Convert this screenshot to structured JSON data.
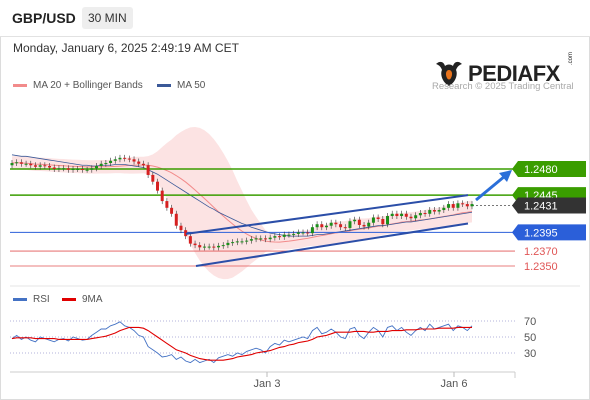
{
  "header": {
    "symbol": "GBP/USD",
    "timeframe": "30 MIN",
    "datetime": "Monday, January 6, 2025 2:49:19 AM CET"
  },
  "brand": {
    "logo_text": "PEDIAFX",
    "logo_com": ".com",
    "copyright": "Research © 2025 Trading Central"
  },
  "legend": {
    "ma_bb": {
      "label": "MA 20 + Bollinger Bands",
      "color": "#f28b8b"
    },
    "ma50": {
      "label": "MA 50",
      "color": "#3b5998"
    },
    "rsi": {
      "label": "RSI",
      "color": "#4472c4"
    },
    "rsi_ma": {
      "label": "9MA",
      "color": "#e00000"
    }
  },
  "chart_data": {
    "type": "candlestick",
    "y_range": [
      1.234,
      1.254
    ],
    "levels": [
      {
        "value": "1.2480",
        "price": 1.248,
        "color": "#3a9d00",
        "style": "solid"
      },
      {
        "value": "1.2445",
        "price": 1.2445,
        "color": "#3a9d00",
        "style": "solid"
      },
      {
        "value": "1.2431",
        "price": 1.2431,
        "color": "#333333",
        "style": "dotted"
      },
      {
        "value": "1.2395",
        "price": 1.2395,
        "color": "#2b5fd9",
        "style": "solid"
      },
      {
        "value": "1.2370",
        "price": 1.237,
        "color": "#e05555",
        "style": "thin"
      },
      {
        "value": "1.2350",
        "price": 1.235,
        "color": "#e05555",
        "style": "thin"
      }
    ],
    "x_ticks": [
      "Jan 3",
      "Jan 6"
    ],
    "channel": {
      "upper": [
        [
          0.0,
          1.2393
        ],
        [
          1.0,
          1.2445
        ]
      ],
      "lower": [
        [
          0.0,
          1.235
        ],
        [
          1.0,
          1.2407
        ]
      ]
    },
    "closes": [
      1.2488,
      1.2489,
      1.2487,
      1.2487,
      1.2485,
      1.2483,
      1.2485,
      1.2484,
      1.2482,
      1.248,
      1.2481,
      1.2481,
      1.2479,
      1.248,
      1.248,
      1.2479,
      1.2479,
      1.2481,
      1.2484,
      1.2487,
      1.2488,
      1.2491,
      1.2493,
      1.2495,
      1.2494,
      1.2493,
      1.249,
      1.2487,
      1.2485,
      1.2472,
      1.2463,
      1.2451,
      1.2437,
      1.2428,
      1.242,
      1.2404,
      1.2398,
      1.239,
      1.238,
      1.2378,
      1.2375,
      1.2376,
      1.2376,
      1.2375,
      1.2377,
      1.2378,
      1.2381,
      1.2382,
      1.2383,
      1.2383,
      1.2384,
      1.2386,
      1.2387,
      1.2387,
      1.2386,
      1.2388,
      1.239,
      1.2389,
      1.2392,
      1.2392,
      1.2393,
      1.2395,
      1.2395,
      1.2394,
      1.2402,
      1.2406,
      1.2402,
      1.2404,
      1.2408,
      1.2406,
      1.2402,
      1.2401,
      1.241,
      1.2412,
      1.2405,
      1.2403,
      1.2408,
      1.2415,
      1.2413,
      1.2406,
      1.2417,
      1.242,
      1.2417,
      1.242,
      1.2416,
      1.2414,
      1.2418,
      1.2421,
      1.242,
      1.2425,
      1.2423,
      1.2425,
      1.2428,
      1.2433,
      1.2428,
      1.2434,
      1.2433,
      1.243,
      1.2433
    ],
    "ma50": [
      1.2499,
      1.2498,
      1.2497,
      1.2497,
      1.2496,
      1.2495,
      1.2494,
      1.2493,
      1.2492,
      1.2491,
      1.249,
      1.2489,
      1.2488,
      1.2487,
      1.2486,
      1.2485,
      1.2485,
      1.2484,
      1.2484,
      1.2485,
      1.2485,
      1.2485,
      1.2486,
      1.2486,
      1.2486,
      1.2485,
      1.2484,
      1.2483,
      1.2482,
      1.2479,
      1.2476,
      1.2473,
      1.2469,
      1.2465,
      1.2461,
      1.2457,
      1.2453,
      1.2449,
      1.2445,
      1.2441,
      1.2437,
      1.2433,
      1.2429,
      1.2426,
      1.2422,
      1.2419,
      1.2416,
      1.2413,
      1.241,
      1.2407,
      1.2405,
      1.2402,
      1.24,
      1.2398,
      1.2396,
      1.2394,
      1.2393,
      1.2392,
      1.2391,
      1.239,
      1.239,
      1.239,
      1.239,
      1.239,
      1.2391,
      1.2392,
      1.2392,
      1.2393,
      1.2394,
      1.2395,
      1.2396,
      1.2397,
      1.2398,
      1.2399,
      1.24,
      1.2401,
      1.2402,
      1.2403,
      1.2404,
      1.2404,
      1.2405,
      1.2406,
      1.2407,
      1.2408,
      1.2409,
      1.2409,
      1.241,
      1.2411,
      1.2412,
      1.2413,
      1.2414,
      1.2415,
      1.2416,
      1.2417,
      1.2418,
      1.2419,
      1.242,
      1.2421,
      1.2422
    ],
    "rsi": {
      "ticks": [
        "70",
        "50",
        "30"
      ],
      "range": [
        10,
        90
      ],
      "values": [
        48,
        52,
        47,
        50,
        46,
        44,
        50,
        48,
        46,
        44,
        47,
        48,
        45,
        50,
        48,
        46,
        47,
        52,
        56,
        60,
        60,
        64,
        66,
        69,
        64,
        62,
        58,
        52,
        50,
        38,
        34,
        30,
        25,
        26,
        28,
        22,
        25,
        20,
        18,
        22,
        18,
        20,
        22,
        18,
        24,
        26,
        28,
        26,
        30,
        28,
        32,
        34,
        36,
        34,
        30,
        38,
        42,
        40,
        46,
        44,
        46,
        48,
        50,
        48,
        58,
        62,
        54,
        56,
        60,
        56,
        50,
        48,
        60,
        62,
        52,
        48,
        56,
        62,
        58,
        50,
        62,
        64,
        58,
        62,
        56,
        52,
        58,
        62,
        58,
        66,
        60,
        62,
        64,
        66,
        58,
        64,
        62,
        58,
        64
      ],
      "ma": [
        48,
        49,
        49,
        49,
        49,
        48,
        48,
        48,
        48,
        48,
        47,
        47,
        47,
        47,
        47,
        47,
        47,
        48,
        49,
        50,
        51,
        53,
        55,
        58,
        60,
        62,
        62,
        62,
        61,
        58,
        54,
        50,
        46,
        42,
        38,
        34,
        32,
        30,
        27,
        25,
        23,
        22,
        21,
        21,
        21,
        21,
        22,
        23,
        25,
        26,
        27,
        28,
        30,
        31,
        32,
        33,
        35,
        37,
        38,
        40,
        41,
        43,
        44,
        45,
        47,
        50,
        51,
        52,
        54,
        56,
        56,
        56,
        56,
        57,
        57,
        57,
        56,
        56,
        57,
        57,
        57,
        58,
        58,
        58,
        59,
        59,
        59,
        60,
        60,
        60,
        60,
        61,
        61,
        61,
        61,
        62,
        62,
        62,
        62
      ]
    }
  }
}
